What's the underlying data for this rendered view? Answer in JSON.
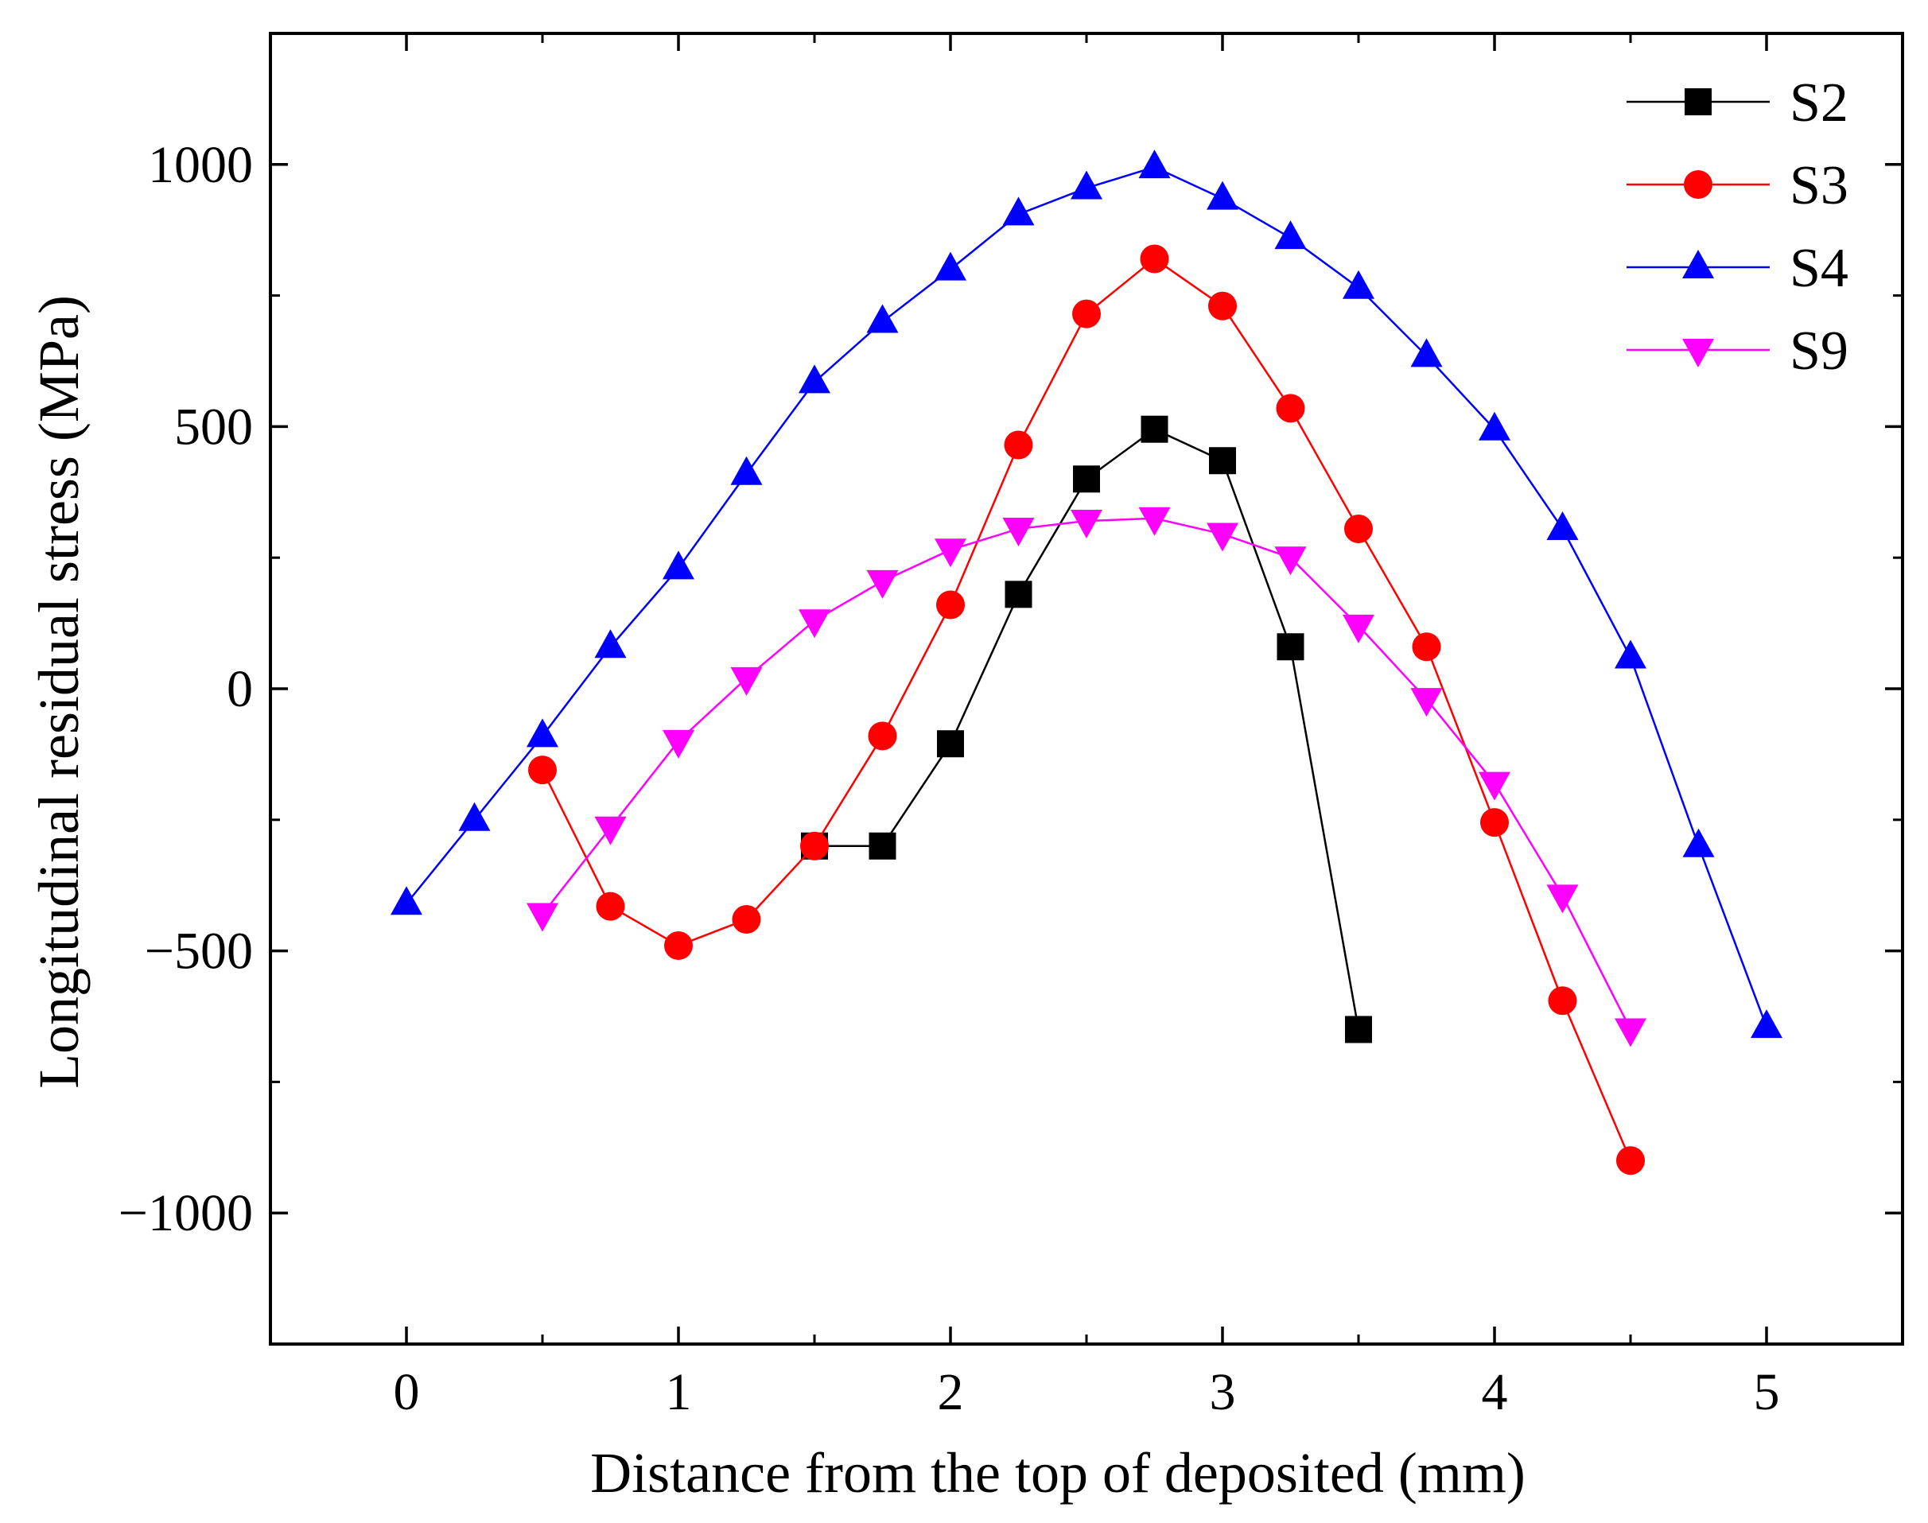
{
  "chart_data": {
    "type": "line",
    "title": "",
    "xlabel": "Distance from the top of deposited (mm)",
    "ylabel": "Longitudinal residual stress (MPa)",
    "xlim": [
      -0.5,
      5.5
    ],
    "ylim": [
      -1250,
      1250
    ],
    "xticks": [
      0,
      1,
      2,
      3,
      4,
      5
    ],
    "xtick_labels": [
      "0",
      "1",
      "2",
      "3",
      "4",
      "5"
    ],
    "yticks": [
      -1000,
      -500,
      0,
      500,
      1000
    ],
    "ytick_labels": [
      "−1000",
      "−500",
      "0",
      "500",
      "1000"
    ],
    "grid": false,
    "legend_position": "top-right",
    "series": [
      {
        "name": "S2",
        "color": "#000000",
        "marker": "square",
        "x": [
          1.5,
          1.75,
          2.0,
          2.25,
          2.5,
          2.75,
          3.0,
          3.25,
          3.5
        ],
        "y": [
          -300,
          -300,
          -105,
          180,
          400,
          495,
          435,
          80,
          -650
        ]
      },
      {
        "name": "S3",
        "color": "#ff0000",
        "marker": "circle",
        "x": [
          0.5,
          0.75,
          1.0,
          1.25,
          1.5,
          1.75,
          2.0,
          2.25,
          2.5,
          2.75,
          3.0,
          3.25,
          3.5,
          3.75,
          4.0,
          4.25,
          4.5
        ],
        "y": [
          -155,
          -415,
          -490,
          -440,
          -300,
          -90,
          160,
          465,
          715,
          820,
          730,
          535,
          305,
          80,
          -255,
          -595,
          -900
        ]
      },
      {
        "name": "S4",
        "color": "#0000ff",
        "marker": "triangle-up",
        "x": [
          0.0,
          0.25,
          0.5,
          0.75,
          1.0,
          1.25,
          1.5,
          1.75,
          2.0,
          2.25,
          2.5,
          2.75,
          3.0,
          3.25,
          3.5,
          3.75,
          4.0,
          4.25,
          4.5,
          4.75,
          5.0
        ],
        "y": [
          -410,
          -250,
          -90,
          80,
          230,
          410,
          585,
          700,
          800,
          905,
          955,
          995,
          935,
          860,
          765,
          635,
          495,
          305,
          60,
          -300,
          -645
        ]
      },
      {
        "name": "S9",
        "color": "#ff00ff",
        "marker": "triangle-down",
        "x": [
          0.5,
          0.75,
          1.0,
          1.25,
          1.5,
          1.75,
          2.0,
          2.25,
          2.5,
          2.75,
          3.0,
          3.25,
          3.5,
          3.75,
          4.0,
          4.25,
          4.5
        ],
        "y": [
          -430,
          -265,
          -100,
          20,
          130,
          205,
          265,
          305,
          320,
          325,
          295,
          250,
          120,
          -20,
          -180,
          -395,
          -650
        ]
      }
    ]
  }
}
